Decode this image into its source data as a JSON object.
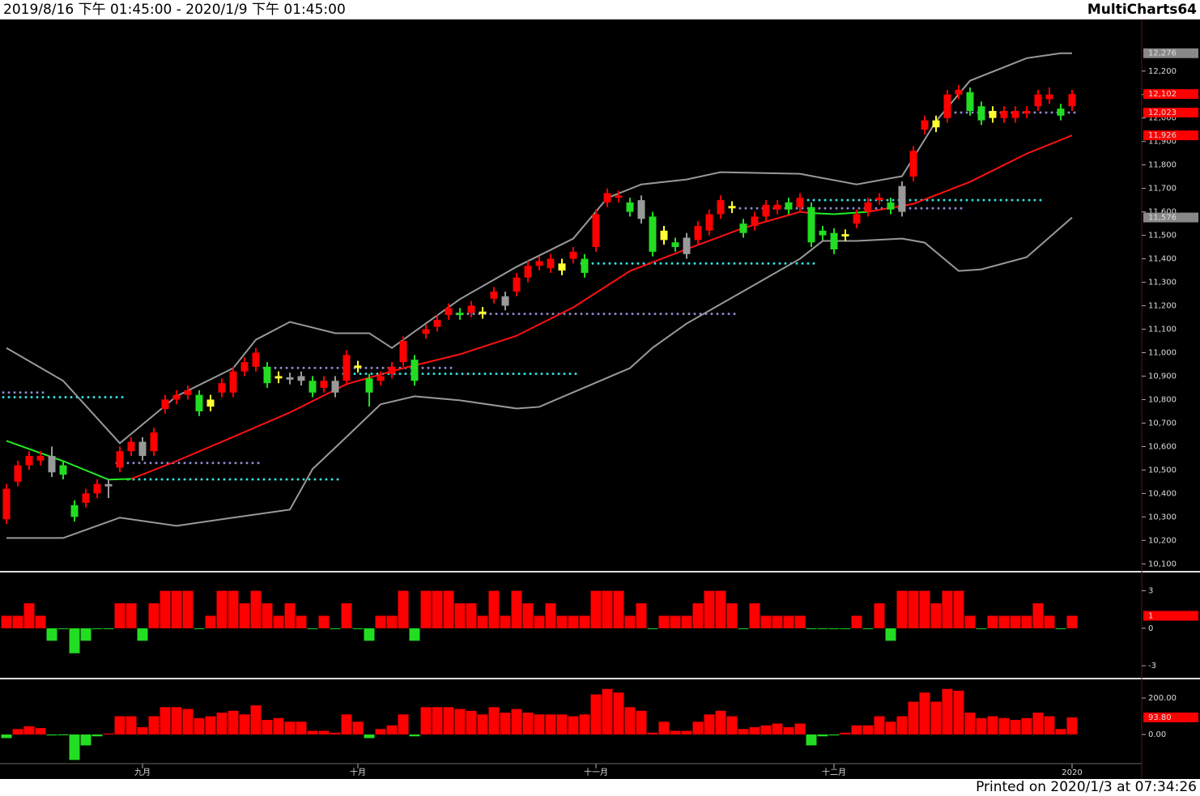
{
  "header": {
    "range": "2019/8/16 下午 01:45:00 - 2020/1/9 下午 01:45:00",
    "brand": "MultiCharts64"
  },
  "footer": "Printed on 2020/1/3 at 07:34:26",
  "x_labels": [
    {
      "index": 12,
      "label": "九月"
    },
    {
      "index": 31,
      "label": "十月"
    },
    {
      "index": 52,
      "label": "十一月"
    },
    {
      "index": 73,
      "label": "十二月"
    },
    {
      "index": 94,
      "label": "2020"
    }
  ],
  "chart_data": [
    {
      "type": "candlestick",
      "ylim": [
        10070,
        12420
      ],
      "yticks": [
        {
          "value": 10100,
          "label": "10,100"
        },
        {
          "value": 10200,
          "label": "10,200"
        },
        {
          "value": 10300,
          "label": "10,300"
        },
        {
          "value": 10400,
          "label": "10,400"
        },
        {
          "value": 10500,
          "label": "10,500"
        },
        {
          "value": 10600,
          "label": "10,600"
        },
        {
          "value": 10700,
          "label": "10,700"
        },
        {
          "value": 10800,
          "label": "10,800"
        },
        {
          "value": 10900,
          "label": "10,900"
        },
        {
          "value": 11000,
          "label": "11,000"
        },
        {
          "value": 11100,
          "label": "11,100"
        },
        {
          "value": 11200,
          "label": "11,200"
        },
        {
          "value": 11300,
          "label": "11,300"
        },
        {
          "value": 11400,
          "label": "11,400"
        },
        {
          "value": 11500,
          "label": "11,500"
        },
        {
          "value": 11600,
          "label": "11,600"
        },
        {
          "value": 11700,
          "label": "11,700"
        },
        {
          "value": 11800,
          "label": "11,800"
        },
        {
          "value": 11900,
          "label": "11,900"
        },
        {
          "value": 12000,
          "label": "12,000"
        },
        {
          "value": 12100,
          "label": "12,100"
        },
        {
          "value": 12200,
          "label": "12,200"
        }
      ],
      "color_key": {
        "r": "#ff0000",
        "g": "#22dd22",
        "y": "#ffff33",
        "s": "#999999"
      },
      "candle_colors": [
        "r",
        "r",
        "r",
        "r",
        "s",
        "g",
        "g",
        "r",
        "r",
        "s",
        "r",
        "r",
        "s",
        "r",
        "r",
        "r",
        "r",
        "g",
        "y",
        "r",
        "r",
        "r",
        "r",
        "g",
        "y",
        "s",
        "s",
        "g",
        "r",
        "s",
        "r",
        "y",
        "g",
        "r",
        "r",
        "r",
        "g",
        "r",
        "r",
        "r",
        "g",
        "r",
        "y",
        "r",
        "s",
        "r",
        "r",
        "r",
        "r",
        "y",
        "r",
        "g",
        "r",
        "r",
        "r",
        "g",
        "s",
        "g",
        "y",
        "g",
        "s",
        "r",
        "r",
        "r",
        "y",
        "g",
        "r",
        "r",
        "r",
        "g",
        "r",
        "g",
        "g",
        "g",
        "y",
        "r",
        "r",
        "r",
        "g",
        "s",
        "r",
        "r",
        "y",
        "r",
        "r",
        "g",
        "g",
        "y",
        "r",
        "r",
        "r",
        "r",
        "r",
        "g",
        "r"
      ],
      "open": [
        10290,
        10450,
        10520,
        10540,
        10560,
        10520,
        10350,
        10360,
        10400,
        10440,
        10510,
        10580,
        10620,
        10580,
        10760,
        10800,
        10820,
        10820,
        10770,
        10830,
        10830,
        10920,
        10940,
        10940,
        10890,
        10895,
        10900,
        10880,
        10850,
        10880,
        10880,
        10935,
        10890,
        10880,
        10910,
        10960,
        10970,
        11080,
        11110,
        11160,
        11170,
        11170,
        11165,
        11230,
        11240,
        11260,
        11320,
        11370,
        11360,
        11350,
        11400,
        11400,
        11450,
        11640,
        11660,
        11640,
        11650,
        11580,
        11480,
        11470,
        11490,
        11480,
        11520,
        11590,
        11615,
        11550,
        11540,
        11580,
        11610,
        11640,
        11620,
        11620,
        11520,
        11510,
        11495,
        11550,
        11600,
        11650,
        11640,
        11710,
        11750,
        11950,
        11960,
        12000,
        12100,
        12110,
        12050,
        12000,
        12000,
        12000,
        12020,
        12050,
        12080,
        12040,
        12050
      ],
      "high": [
        10440,
        10540,
        10580,
        10580,
        10600,
        10540,
        10370,
        10420,
        10460,
        10460,
        10600,
        10640,
        10640,
        10680,
        10820,
        10840,
        10860,
        10840,
        10820,
        10890,
        10940,
        10980,
        11020,
        10960,
        10920,
        10915,
        10920,
        10900,
        10900,
        10900,
        11010,
        10965,
        10910,
        10920,
        10960,
        11070,
        10990,
        11120,
        11160,
        11210,
        11190,
        11220,
        11195,
        11280,
        11260,
        11340,
        11390,
        11410,
        11420,
        11400,
        11450,
        11420,
        11610,
        11700,
        11690,
        11660,
        11670,
        11600,
        11540,
        11490,
        11510,
        11560,
        11610,
        11670,
        11645,
        11570,
        11600,
        11650,
        11650,
        11660,
        11680,
        11640,
        11540,
        11530,
        11525,
        11610,
        11660,
        11680,
        11660,
        11730,
        11880,
        12010,
        12010,
        12120,
        12140,
        12130,
        12070,
        12050,
        12050,
        12050,
        12050,
        12120,
        12130,
        12060,
        12120
      ],
      "low": [
        10270,
        10430,
        10500,
        10520,
        10470,
        10460,
        10280,
        10340,
        10380,
        10380,
        10490,
        10560,
        10540,
        10560,
        10740,
        10780,
        10800,
        10730,
        10750,
        10810,
        10810,
        10900,
        10920,
        10850,
        10870,
        10865,
        10860,
        10810,
        10830,
        10810,
        10860,
        10915,
        10770,
        10860,
        10890,
        10940,
        10860,
        11060,
        11090,
        11140,
        11140,
        11150,
        11145,
        11210,
        11180,
        11240,
        11300,
        11350,
        11340,
        11330,
        11380,
        11320,
        11430,
        11620,
        11640,
        11580,
        11550,
        11410,
        11460,
        11430,
        11400,
        11460,
        11500,
        11570,
        11595,
        11490,
        11520,
        11560,
        11590,
        11590,
        11600,
        11450,
        11480,
        11420,
        11475,
        11530,
        11580,
        11630,
        11590,
        11580,
        11730,
        11930,
        11940,
        11980,
        12080,
        12010,
        11970,
        11980,
        11980,
        11980,
        12000,
        12030,
        12060,
        11990,
        12030
      ],
      "close": [
        10420,
        10520,
        10560,
        10560,
        10490,
        10480,
        10300,
        10400,
        10440,
        10430,
        10580,
        10620,
        10560,
        10660,
        10800,
        10820,
        10840,
        10750,
        10800,
        10870,
        10920,
        10960,
        11000,
        10870,
        10900,
        10885,
        10880,
        10830,
        10880,
        10830,
        10990,
        10945,
        10830,
        10900,
        10940,
        11050,
        10880,
        11100,
        11140,
        11190,
        11160,
        11200,
        11175,
        11260,
        11200,
        11320,
        11370,
        11390,
        11400,
        11380,
        11430,
        11340,
        11590,
        11680,
        11670,
        11600,
        11570,
        11430,
        11520,
        11450,
        11420,
        11540,
        11590,
        11650,
        11625,
        11510,
        11580,
        11630,
        11630,
        11610,
        11660,
        11470,
        11500,
        11440,
        11505,
        11590,
        11640,
        11660,
        11610,
        11600,
        11860,
        11990,
        11990,
        12100,
        12120,
        12030,
        11990,
        12030,
        12030,
        12030,
        12030,
        12100,
        12100,
        12010,
        12102
      ],
      "lines": [
        {
          "color": "#999999",
          "x": [
            0,
            5,
            10,
            15,
            20,
            22,
            25,
            29,
            32,
            34,
            36,
            40,
            45,
            50,
            53,
            56,
            60,
            63,
            70,
            75,
            79,
            82,
            85,
            90,
            93,
            94
          ],
          "values": [
            11020,
            10880,
            10614,
            10814,
            10934,
            11055,
            11131,
            11083,
            11083,
            11020,
            11090,
            11228,
            11366,
            11486,
            11659,
            11717,
            11738,
            11769,
            11762,
            11717,
            11752,
            11986,
            12159,
            12255,
            12276,
            12276
          ]
        },
        {
          "color": "#999999",
          "x": [
            0,
            5,
            8,
            10,
            15,
            20,
            25,
            27,
            30,
            33,
            36,
            40,
            45,
            47,
            50,
            55,
            57,
            60,
            65,
            70,
            72,
            75,
            79,
            81,
            84,
            86,
            90,
            94
          ],
          "values": [
            10210,
            10210,
            10262,
            10297,
            10262,
            10297,
            10331,
            10504,
            10641,
            10780,
            10814,
            10797,
            10762,
            10769,
            10831,
            10934,
            11021,
            11124,
            11262,
            11400,
            11476,
            11476,
            11486,
            11469,
            11348,
            11355,
            11407,
            11576
          ]
        },
        {
          "color": "#ff1111",
          "x": [
            11,
            15,
            20,
            25,
            30,
            35,
            40,
            45,
            50,
            55,
            60,
            65,
            70,
            71,
            73,
            76,
            80,
            85,
            90,
            94
          ],
          "values": [
            10462,
            10538,
            10641,
            10745,
            10866,
            10934,
            10993,
            11072,
            11193,
            11348,
            11441,
            11531,
            11600,
            11595,
            null,
            11600,
            11634,
            11728,
            11848,
            11926
          ]
        },
        {
          "color": "#22ee22",
          "x": [
            0,
            5,
            9,
            11,
            40,
            71,
            73,
            76
          ],
          "values": [
            10624,
            10538,
            10459,
            10462,
            null,
            11595,
            11590,
            11600
          ]
        }
      ],
      "levels": [
        {
          "color": "#33dddd",
          "from": 0,
          "to": 10,
          "value": 10810
        },
        {
          "color": "#33dddd",
          "from": 11,
          "to": 29,
          "value": 10460
        },
        {
          "color": "#33dddd",
          "from": 30,
          "to": 50,
          "value": 10910
        },
        {
          "color": "#33dddd",
          "from": 51,
          "to": 71,
          "value": 11380
        },
        {
          "color": "#33dddd",
          "from": 71,
          "to": 91,
          "value": 11650
        },
        {
          "color": "#8888cc",
          "from": 0,
          "to": 3,
          "value": 10830
        },
        {
          "color": "#8888cc",
          "from": 10,
          "to": 22,
          "value": 10530
        },
        {
          "color": "#8888cc",
          "from": 23,
          "to": 39,
          "value": 10935
        },
        {
          "color": "#8888cc",
          "from": 40,
          "to": 64,
          "value": 11165
        },
        {
          "color": "#8888cc",
          "from": 65,
          "to": 84,
          "value": 11615
        },
        {
          "color": "#8888cc",
          "from": 84,
          "to": 94,
          "value": 12023
        }
      ],
      "badges": [
        {
          "value": 12276,
          "label": "12,276",
          "color": "#888888"
        },
        {
          "value": 12102,
          "label": "12,102",
          "color": "#ff0000"
        },
        {
          "value": 12023,
          "label": "12,023",
          "color": "#ff0000"
        },
        {
          "value": 11926,
          "label": "11,926",
          "color": "#ff0000"
        },
        {
          "value": 11576,
          "label": "11,576",
          "color": "#888888"
        }
      ]
    },
    {
      "type": "bar",
      "ylim": [
        -3.9,
        4.4
      ],
      "yticks": [
        3,
        0,
        -3
      ],
      "up_color": "#ff0000",
      "down_color": "#22dd22",
      "values": [
        1,
        1,
        2,
        1,
        -1,
        0,
        -2,
        -1,
        0,
        0,
        2,
        2,
        -1,
        2,
        3,
        3,
        3,
        0,
        1,
        3,
        3,
        2,
        3,
        2,
        1,
        2,
        1,
        0,
        1,
        0,
        2,
        0,
        -1,
        1,
        1,
        3,
        -1,
        3,
        3,
        3,
        2,
        2,
        1,
        3,
        1,
        3,
        2,
        1,
        2,
        1,
        1,
        1,
        3,
        3,
        3,
        1,
        2,
        0,
        1,
        1,
        1,
        2,
        3,
        3,
        2,
        0,
        2,
        1,
        1,
        1,
        1,
        0,
        0,
        0,
        0,
        1,
        0,
        2,
        -1,
        3,
        3,
        3,
        2,
        3,
        3,
        1,
        0,
        1,
        1,
        1,
        1,
        2,
        1,
        0,
        1
      ],
      "badges": [
        {
          "value": 1,
          "label": "1",
          "color": "#ff0000"
        }
      ]
    },
    {
      "type": "bar",
      "ylim": [
        -160,
        298
      ],
      "yticks": [
        {
          "value": 200,
          "label": "200.00"
        },
        {
          "value": 0,
          "label": "0.00"
        }
      ],
      "up_color": "#ff0000",
      "down_color": "#22dd22",
      "values": [
        -20,
        30,
        45,
        35,
        -5,
        0,
        -140,
        -60,
        -10,
        5,
        100,
        100,
        40,
        100,
        150,
        150,
        140,
        90,
        100,
        120,
        130,
        110,
        160,
        80,
        90,
        70,
        70,
        20,
        20,
        10,
        110,
        70,
        -20,
        30,
        50,
        110,
        -10,
        150,
        150,
        150,
        140,
        130,
        110,
        150,
        120,
        140,
        120,
        110,
        110,
        110,
        100,
        110,
        220,
        250,
        230,
        150,
        130,
        10,
        70,
        20,
        20,
        70,
        110,
        130,
        100,
        30,
        40,
        50,
        60,
        40,
        60,
        -60,
        -10,
        -5,
        10,
        50,
        50,
        100,
        70,
        100,
        180,
        230,
        180,
        250,
        240,
        120,
        90,
        100,
        90,
        80,
        90,
        120,
        100,
        30,
        93.8
      ],
      "badges": [
        {
          "value": 93.8,
          "label": "93.80",
          "color": "#ff0000"
        }
      ]
    }
  ]
}
